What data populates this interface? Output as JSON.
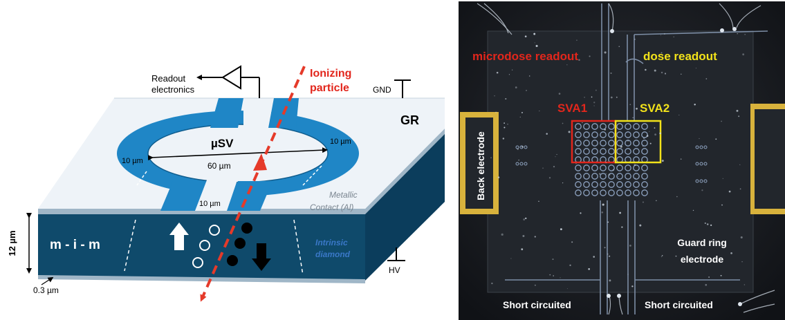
{
  "left_panel": {
    "readout_label_line1": "Readout",
    "readout_label_line2": "electronics",
    "particle_label_line1": "Ionizing",
    "particle_label_line2": "particle",
    "gnd_label": "GND",
    "gr_label": "GR",
    "usv_label": "µSV",
    "width_60_label": "60 µm",
    "width_10_right_label": "10 µm",
    "width_10_left_label": "10 µm",
    "width_10_bottom_label": "10 µm",
    "metallic_line1": "Metallic",
    "metallic_line2": "Contact (Al)",
    "mim_label": "m - i - m",
    "intrinsic_line1": "Intrinsic",
    "intrinsic_line2": "diamond",
    "thickness_label": "12 µm",
    "contact_thickness_label": "0.3 µm",
    "hv_label": "HV"
  },
  "right_panel": {
    "microdose_label": "microdose readout",
    "dose_label": "dose readout",
    "sva1_label": "SVA1",
    "sva2_label": "SVA2",
    "back_electrode_label": "Back electrode",
    "guard_ring_line1": "Guard ring",
    "guard_ring_line2": "electrode",
    "short_left_label": "Short circuited",
    "short_right_label": "Short circuited"
  },
  "colors": {
    "metal_blue": "#1f86c6",
    "diamond_dark": "#0f4a6b",
    "diamond_side": "#0b3d5c",
    "top_surface": "#eef3f8",
    "red_arrow": "#e53a2a",
    "red_label": "#e2261c",
    "yellow_label": "#f2e21a",
    "photo_bg": "#1a1d22",
    "gold_pad": "#d8b23c"
  }
}
